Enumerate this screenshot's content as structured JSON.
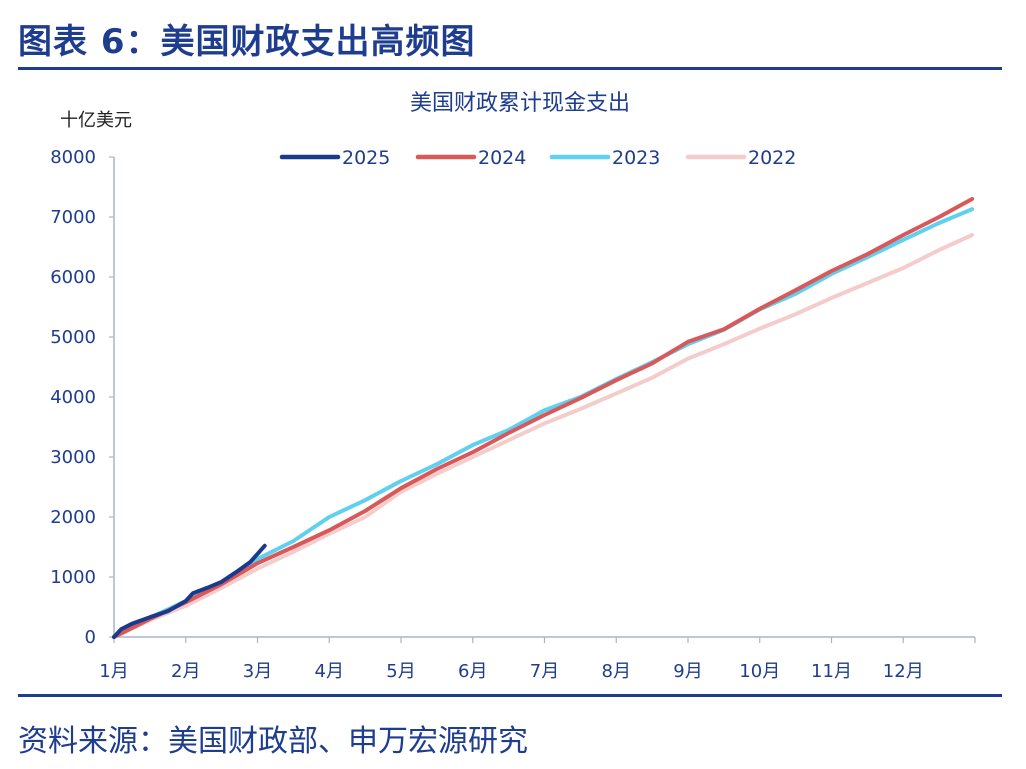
{
  "figure_title": "图表 6：美国财政支出高频图",
  "source": "资料来源：美国财政部、申万宏源研究",
  "chart_data": {
    "type": "line",
    "title": "美国财政累计现金支出",
    "ylabel": "十亿美元",
    "xlabel": "",
    "ylim": [
      0,
      8000
    ],
    "yticks": [
      0,
      1000,
      2000,
      3000,
      4000,
      5000,
      6000,
      7000,
      8000
    ],
    "x_unit": "month",
    "xlim": [
      1,
      13
    ],
    "xticks": [
      "1月",
      "2月",
      "3月",
      "4月",
      "5月",
      "6月",
      "7月",
      "8月",
      "9月",
      "10月",
      "11月",
      "12月"
    ],
    "grid": false,
    "legend_position": "top",
    "series": [
      {
        "name": "2025",
        "color": "#1a3a8c",
        "x": [
          1.0,
          1.1,
          1.25,
          1.5,
          1.75,
          2.0,
          2.1,
          2.3,
          2.5,
          2.7,
          2.9,
          3.1
        ],
        "y": [
          0,
          130,
          220,
          330,
          430,
          600,
          730,
          820,
          920,
          1080,
          1250,
          1520
        ]
      },
      {
        "name": "2024",
        "color": "#d9585a",
        "x": [
          1.0,
          1.5,
          2.0,
          2.5,
          3.0,
          3.5,
          4.0,
          4.5,
          5.0,
          5.5,
          6.0,
          6.5,
          7.0,
          7.5,
          8.0,
          8.5,
          9.0,
          9.5,
          10.0,
          10.5,
          11.0,
          11.5,
          12.0,
          12.5,
          12.96
        ],
        "y": [
          0,
          300,
          580,
          880,
          1230,
          1500,
          1780,
          2100,
          2480,
          2800,
          3080,
          3400,
          3700,
          3980,
          4280,
          4560,
          4920,
          5130,
          5470,
          5780,
          6100,
          6380,
          6700,
          7000,
          7300
        ]
      },
      {
        "name": "2023",
        "color": "#5fd0f0",
        "x": [
          1.0,
          1.5,
          2.0,
          2.5,
          3.0,
          3.5,
          4.0,
          4.5,
          5.0,
          5.5,
          6.0,
          6.5,
          7.0,
          7.5,
          8.0,
          8.5,
          9.0,
          9.5,
          10.0,
          10.5,
          11.0,
          11.5,
          12.0,
          12.5,
          12.96
        ],
        "y": [
          0,
          320,
          600,
          900,
          1300,
          1600,
          2000,
          2280,
          2600,
          2880,
          3200,
          3450,
          3780,
          4000,
          4300,
          4580,
          4880,
          5120,
          5460,
          5720,
          6050,
          6330,
          6620,
          6900,
          7130
        ]
      },
      {
        "name": "2022",
        "color": "#f5cccc",
        "x": [
          1.0,
          1.5,
          2.0,
          2.5,
          3.0,
          3.5,
          4.0,
          4.5,
          5.0,
          5.5,
          6.0,
          6.5,
          7.0,
          7.5,
          8.0,
          8.5,
          9.0,
          9.5,
          10.0,
          10.5,
          11.0,
          11.5,
          12.0,
          12.5,
          12.96
        ],
        "y": [
          0,
          280,
          520,
          820,
          1140,
          1420,
          1720,
          2000,
          2420,
          2720,
          3000,
          3280,
          3560,
          3800,
          4060,
          4320,
          4640,
          4880,
          5140,
          5380,
          5650,
          5900,
          6150,
          6450,
          6700
        ]
      }
    ]
  }
}
